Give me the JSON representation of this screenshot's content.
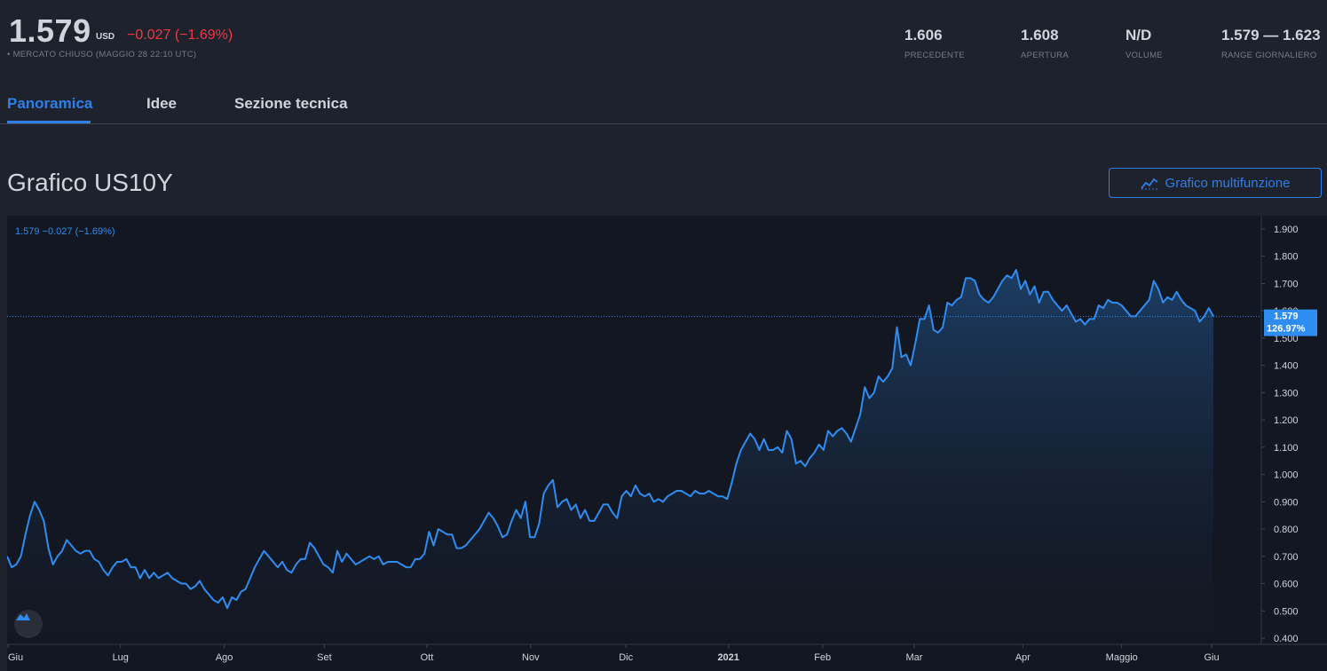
{
  "quote": {
    "price": "1.579",
    "currency": "USD",
    "change": "−0.027 (−1.69%)",
    "status": "• MERCATO CHIUSO (MAGGIO 28 22:10 UTC)"
  },
  "stats": [
    {
      "value": "1.606",
      "label": "PRECEDENTE"
    },
    {
      "value": "1.608",
      "label": "APERTURA"
    },
    {
      "value": "N/D",
      "label": "VOLUME"
    },
    {
      "value": "1.579 — 1.623",
      "label": "RANGE GIORNALIERO"
    }
  ],
  "tabs": [
    {
      "label": "Panoramica",
      "active": true
    },
    {
      "label": "Idee",
      "active": false
    },
    {
      "label": "Sezione tecnica",
      "active": false
    }
  ],
  "section": {
    "title": "Grafico US10Y",
    "button_label": "Grafico multifunzione",
    "button_icon": "chart-line-icon"
  },
  "colors": {
    "accent": "#2f7fe8",
    "line": "#2f8cf0",
    "negative": "#f23645",
    "background": "#131722",
    "panel": "#1e222d"
  },
  "chart_data": {
    "type": "area",
    "legend_text": "1.579  −0.027 (−1.69%)",
    "last_value_label": "1.579",
    "last_percent_label": "126.97%",
    "last_value": 1.579,
    "ylim": [
      0.4,
      1.9
    ],
    "y_ticks": [
      "1.900",
      "1.800",
      "1.700",
      "1.600",
      "1.500",
      "1.400",
      "1.300",
      "1.200",
      "1.100",
      "1.000",
      "0.900",
      "0.800",
      "0.700",
      "0.600",
      "0.500",
      "0.400"
    ],
    "x_ticks": [
      {
        "label": "Giu",
        "bold": false
      },
      {
        "label": "Lug",
        "bold": false
      },
      {
        "label": "Ago",
        "bold": false
      },
      {
        "label": "Set",
        "bold": false
      },
      {
        "label": "Ott",
        "bold": false
      },
      {
        "label": "Nov",
        "bold": false
      },
      {
        "label": "Dic",
        "bold": false
      },
      {
        "label": "2021",
        "bold": true
      },
      {
        "label": "Feb",
        "bold": false
      },
      {
        "label": "Mar",
        "bold": false
      },
      {
        "label": "Apr",
        "bold": false
      },
      {
        "label": "Maggio",
        "bold": false
      },
      {
        "label": "Giu",
        "bold": false
      }
    ],
    "values": [
      0.7,
      0.66,
      0.67,
      0.7,
      0.78,
      0.85,
      0.9,
      0.87,
      0.83,
      0.73,
      0.67,
      0.7,
      0.72,
      0.76,
      0.74,
      0.72,
      0.71,
      0.72,
      0.72,
      0.69,
      0.68,
      0.65,
      0.63,
      0.66,
      0.68,
      0.68,
      0.69,
      0.66,
      0.66,
      0.62,
      0.65,
      0.62,
      0.64,
      0.62,
      0.63,
      0.64,
      0.62,
      0.61,
      0.6,
      0.6,
      0.58,
      0.59,
      0.61,
      0.58,
      0.56,
      0.54,
      0.53,
      0.55,
      0.51,
      0.55,
      0.54,
      0.57,
      0.58,
      0.62,
      0.66,
      0.69,
      0.72,
      0.7,
      0.68,
      0.66,
      0.68,
      0.65,
      0.64,
      0.67,
      0.69,
      0.69,
      0.75,
      0.73,
      0.7,
      0.67,
      0.66,
      0.64,
      0.72,
      0.68,
      0.71,
      0.69,
      0.67,
      0.68,
      0.69,
      0.7,
      0.69,
      0.7,
      0.67,
      0.68,
      0.68,
      0.68,
      0.67,
      0.66,
      0.66,
      0.69,
      0.69,
      0.71,
      0.79,
      0.74,
      0.8,
      0.79,
      0.78,
      0.78,
      0.73,
      0.73,
      0.74,
      0.76,
      0.78,
      0.8,
      0.83,
      0.86,
      0.84,
      0.81,
      0.77,
      0.78,
      0.83,
      0.87,
      0.84,
      0.9,
      0.77,
      0.77,
      0.82,
      0.93,
      0.96,
      0.98,
      0.88,
      0.9,
      0.91,
      0.87,
      0.89,
      0.84,
      0.87,
      0.83,
      0.83,
      0.86,
      0.89,
      0.89,
      0.86,
      0.84,
      0.92,
      0.94,
      0.92,
      0.96,
      0.93,
      0.92,
      0.93,
      0.9,
      0.91,
      0.9,
      0.92,
      0.93,
      0.94,
      0.94,
      0.93,
      0.92,
      0.94,
      0.93,
      0.93,
      0.94,
      0.93,
      0.92,
      0.92,
      0.91,
      0.97,
      1.04,
      1.09,
      1.12,
      1.15,
      1.13,
      1.09,
      1.13,
      1.09,
      1.09,
      1.1,
      1.08,
      1.16,
      1.13,
      1.04,
      1.05,
      1.03,
      1.06,
      1.08,
      1.11,
      1.09,
      1.16,
      1.14,
      1.16,
      1.17,
      1.15,
      1.12,
      1.17,
      1.22,
      1.32,
      1.28,
      1.3,
      1.36,
      1.34,
      1.36,
      1.39,
      1.54,
      1.43,
      1.44,
      1.4,
      1.48,
      1.57,
      1.57,
      1.62,
      1.53,
      1.52,
      1.54,
      1.63,
      1.62,
      1.64,
      1.65,
      1.72,
      1.72,
      1.71,
      1.66,
      1.64,
      1.63,
      1.65,
      1.68,
      1.71,
      1.73,
      1.72,
      1.75,
      1.68,
      1.71,
      1.66,
      1.69,
      1.63,
      1.67,
      1.67,
      1.64,
      1.62,
      1.6,
      1.62,
      1.59,
      1.56,
      1.57,
      1.55,
      1.57,
      1.57,
      1.62,
      1.61,
      1.64,
      1.63,
      1.63,
      1.62,
      1.6,
      1.58,
      1.58,
      1.6,
      1.62,
      1.64,
      1.71,
      1.68,
      1.63,
      1.65,
      1.64,
      1.67,
      1.64,
      1.62,
      1.61,
      1.6,
      1.56,
      1.58,
      1.61,
      1.58
    ]
  }
}
